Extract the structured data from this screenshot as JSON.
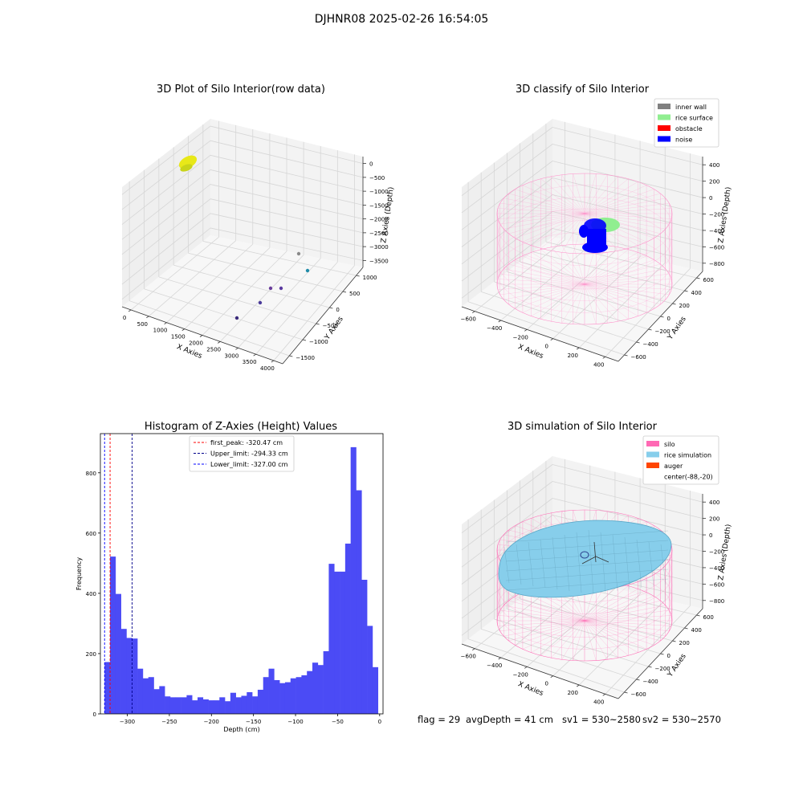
{
  "suptitle": "DJHNR08 2025-02-26 16:54:05",
  "colors": {
    "hist_bar": "#4b4bf5",
    "first_peak": "#ff0000",
    "upper_limit": "#00008b",
    "lower_limit": "#0000ff",
    "inner_wall": "#808080",
    "rice_surface": "#90ee90",
    "obstacle": "#ff0000",
    "noise": "#0000ff",
    "silo": "#ff69b4",
    "rice_simulation": "#87ceeb",
    "auger": "#ff4500"
  },
  "chart_data": [
    {
      "type": "scatter",
      "projection": "3d",
      "title": "3D Plot of Silo Interior(row data)",
      "xlabel": "X Axies",
      "ylabel": "Y Axies",
      "zlabel": "Z Axies (Depth)",
      "x_ticks": [
        "0",
        "500",
        "1000",
        "1500",
        "2000",
        "2500",
        "3000",
        "3500",
        "4000"
      ],
      "y_ticks": [
        "−1500",
        "−1000",
        "−500",
        "0",
        "500",
        "1000"
      ],
      "z_ticks": [
        "0",
        "−500",
        "−1000",
        "−1500",
        "−2000",
        "−2500",
        "−3000",
        "−3500"
      ],
      "grid": true
    },
    {
      "type": "scatter",
      "projection": "3d",
      "title": "3D classify of Silo Interior",
      "xlabel": "X Axies",
      "ylabel": "Y Axies",
      "zlabel": "Z Axies (Depth)",
      "x_ticks": [
        "−600",
        "−400",
        "−200",
        "0",
        "200",
        "400"
      ],
      "y_ticks": [
        "−600",
        "−400",
        "−200",
        "0",
        "200",
        "400",
        "600"
      ],
      "z_ticks": [
        "400",
        "200",
        "0",
        "−200",
        "−400",
        "−600",
        "−800"
      ],
      "legend": [
        "inner wall",
        "rice surface",
        "obstacle",
        "noise"
      ],
      "legend_position": "top-right",
      "grid": true
    },
    {
      "type": "bar",
      "title": "Histogram of Z-Axies (Height) Values",
      "xlabel": "Depth (cm)",
      "ylabel": "Frequency",
      "xlim": [
        -332,
        4
      ],
      "ylim": [
        0,
        930
      ],
      "x_ticks": [
        -300,
        -250,
        -200,
        -150,
        -100,
        -50,
        0
      ],
      "y_ticks": [
        0,
        200,
        400,
        600,
        800
      ],
      "bin_width": 6.5,
      "bin_start": -327,
      "values": [
        172,
        522,
        398,
        282,
        252,
        250,
        150,
        118,
        122,
        82,
        92,
        58,
        55,
        55,
        55,
        62,
        45,
        55,
        48,
        45,
        45,
        55,
        42,
        70,
        55,
        60,
        72,
        58,
        80,
        122,
        150,
        112,
        102,
        105,
        118,
        122,
        128,
        142,
        170,
        162,
        208,
        498,
        472,
        472,
        565,
        885,
        742,
        445,
        292,
        155
      ],
      "vlines": [
        {
          "label": "first_peak: -320.47 cm",
          "x": -320.47
        },
        {
          "label": "Upper_limit: -294.33 cm",
          "x": -294.33
        },
        {
          "label": "Lower_limit: -327.00 cm",
          "x": -327.0
        }
      ],
      "legend_position": "top-center"
    },
    {
      "type": "surface",
      "projection": "3d",
      "title": "3D simulation of Silo Interior",
      "xlabel": "X Axies",
      "ylabel": "Y Axies",
      "zlabel": "Z Axies (Depth)",
      "x_ticks": [
        "−600",
        "−400",
        "−200",
        "0",
        "200",
        "400"
      ],
      "y_ticks": [
        "−600",
        "−400",
        "−200",
        "0",
        "200",
        "400",
        "600"
      ],
      "z_ticks": [
        "400",
        "200",
        "0",
        "−200",
        "−400",
        "−600",
        "−800"
      ],
      "legend": [
        "silo",
        "rice simulation",
        "auger",
        "center(-88,-20)"
      ],
      "legend_position": "top-right",
      "grid": true
    }
  ],
  "footer": {
    "flag": "flag = 29",
    "avg_depth": "avgDepth = 41 cm",
    "sv1": "sv1 = 530~2580",
    "sv2": "sv2 = 530~2570"
  }
}
